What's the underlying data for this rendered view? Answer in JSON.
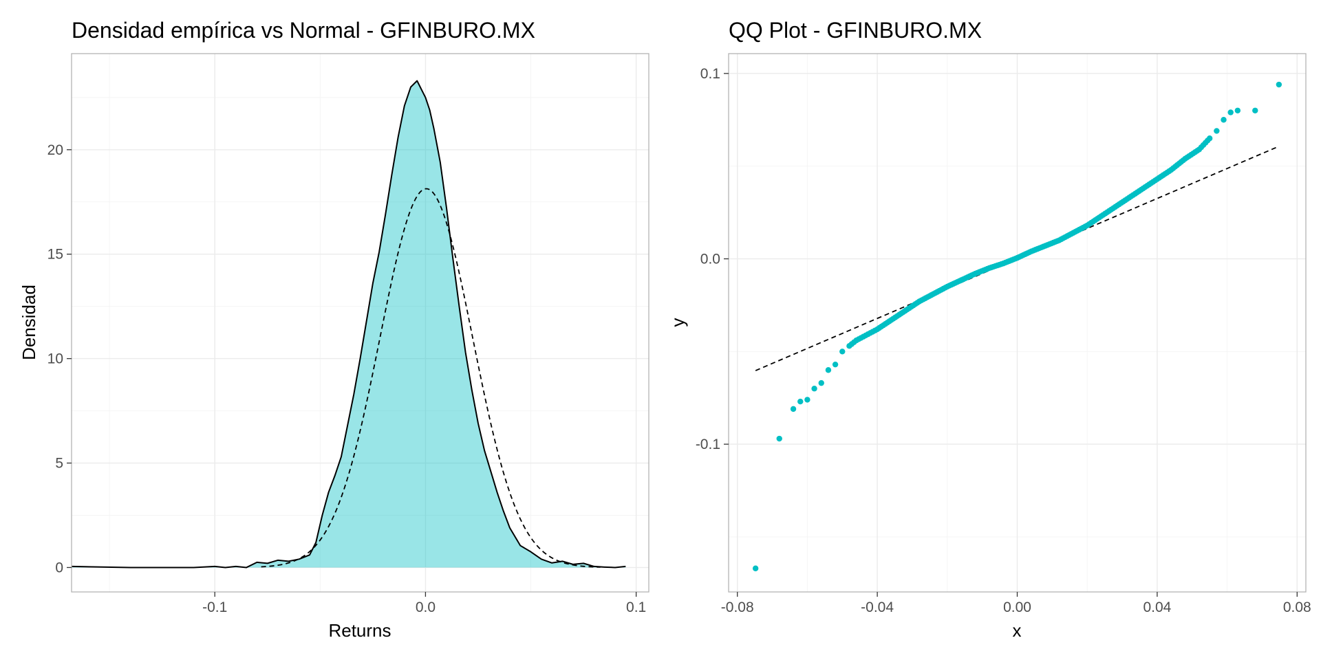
{
  "colors": {
    "fill": "#00bfc4",
    "fill_alpha": 0.4,
    "points": "#00bfc4",
    "line": "#000000",
    "grid": "#ebebeb",
    "panel_border": "#b3b3b3",
    "tick_text": "#4d4d4d"
  },
  "chart_data": [
    {
      "type": "area",
      "title": "Densidad empírica vs Normal - GFINBURO.MX",
      "xlabel": "Returns",
      "ylabel": "Densidad",
      "xlim": [
        -0.168,
        0.106
      ],
      "ylim": [
        -1.17,
        24.6
      ],
      "xticks": [
        -0.1,
        0.0,
        0.1
      ],
      "xtick_labels": [
        "-0.1",
        "0.0",
        "0.1"
      ],
      "yticks": [
        0,
        5,
        10,
        15,
        20
      ],
      "ytick_labels": [
        "0",
        "5",
        "10",
        "15",
        "20"
      ],
      "grid": true,
      "series": [
        {
          "style": "solid, filled",
          "x": [
            -0.168,
            -0.14,
            -0.11,
            -0.1,
            -0.095,
            -0.09,
            -0.085,
            -0.08,
            -0.075,
            -0.07,
            -0.065,
            -0.06,
            -0.055,
            -0.052,
            -0.049,
            -0.046,
            -0.043,
            -0.04,
            -0.037,
            -0.034,
            -0.031,
            -0.028,
            -0.025,
            -0.022,
            -0.019,
            -0.016,
            -0.013,
            -0.01,
            -0.007,
            -0.004,
            -0.002,
            0.0,
            0.002,
            0.004,
            0.007,
            0.01,
            0.013,
            0.016,
            0.019,
            0.022,
            0.025,
            0.028,
            0.031,
            0.034,
            0.037,
            0.04,
            0.045,
            0.05,
            0.055,
            0.06,
            0.065,
            0.07,
            0.075,
            0.08,
            0.085,
            0.09,
            0.095
          ],
          "y": [
            0.05,
            0.0,
            0.0,
            0.05,
            0.0,
            0.05,
            0.0,
            0.25,
            0.2,
            0.35,
            0.3,
            0.4,
            0.6,
            1.2,
            2.5,
            3.6,
            4.4,
            5.3,
            6.8,
            8.3,
            10.0,
            11.8,
            13.6,
            15.1,
            16.9,
            18.8,
            20.6,
            22.1,
            23.0,
            23.3,
            22.9,
            22.5,
            21.9,
            21.0,
            19.4,
            17.2,
            14.8,
            12.5,
            10.3,
            8.5,
            6.9,
            5.6,
            4.6,
            3.6,
            2.7,
            1.9,
            1.05,
            0.75,
            0.4,
            0.22,
            0.3,
            0.15,
            0.2,
            0.05,
            0.02,
            0.0,
            0.05
          ]
        },
        {
          "style": "dashed",
          "mean": 0.0004,
          "sd": 0.022
        }
      ]
    },
    {
      "type": "scatter",
      "title": "QQ Plot - GFINBURO.MX",
      "xlabel": "x",
      "ylabel": "y",
      "xlim": [
        -0.0825,
        0.0825
      ],
      "ylim": [
        -0.1797,
        0.1107
      ],
      "xticks": [
        -0.08,
        -0.04,
        0.0,
        0.04,
        0.08
      ],
      "xtick_labels": [
        "-0.08",
        "-0.04",
        "0.00",
        "0.04",
        "0.08"
      ],
      "yticks": [
        -0.1,
        0.0,
        0.1
      ],
      "ytick_labels": [
        "-0.1",
        "0.0",
        "0.1"
      ],
      "grid": true,
      "quantile_curve": {
        "x": [
          -0.0748,
          -0.068,
          -0.064,
          -0.062,
          -0.06,
          -0.058,
          -0.056,
          -0.054,
          -0.052,
          -0.05,
          -0.048,
          -0.046,
          -0.044,
          -0.042,
          -0.04,
          -0.036,
          -0.032,
          -0.028,
          -0.024,
          -0.02,
          -0.016,
          -0.012,
          -0.008,
          -0.004,
          0.0,
          0.004,
          0.008,
          0.012,
          0.016,
          0.02,
          0.024,
          0.028,
          0.032,
          0.036,
          0.04,
          0.044,
          0.048,
          0.052,
          0.055,
          0.057,
          0.059,
          0.061,
          0.063,
          0.068,
          0.0748
        ],
        "y": [
          -0.167,
          -0.097,
          -0.081,
          -0.077,
          -0.076,
          -0.07,
          -0.067,
          -0.06,
          -0.057,
          -0.05,
          -0.047,
          -0.044,
          -0.042,
          -0.04,
          -0.038,
          -0.033,
          -0.028,
          -0.023,
          -0.019,
          -0.015,
          -0.0115,
          -0.008,
          -0.005,
          -0.0025,
          0.0005,
          0.004,
          0.007,
          0.01,
          0.014,
          0.018,
          0.023,
          0.028,
          0.033,
          0.038,
          0.043,
          0.048,
          0.054,
          0.059,
          0.065,
          0.069,
          0.075,
          0.079,
          0.08,
          0.08,
          0.094
        ]
      },
      "reference_line": {
        "style": "dashed",
        "x": [
          -0.0748,
          0.0748
        ],
        "y": [
          -0.0603,
          0.0607
        ]
      }
    }
  ]
}
